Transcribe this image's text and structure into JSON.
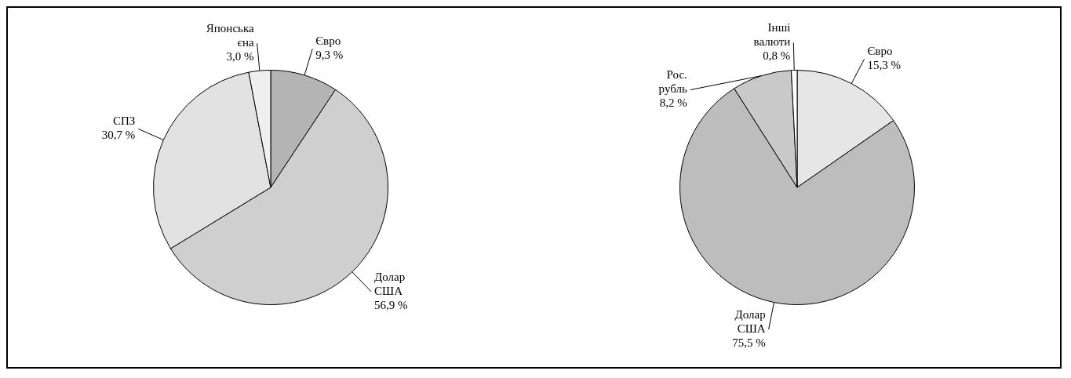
{
  "chart_data": [
    {
      "type": "pie",
      "categories": [
        "Євро",
        "Долар США",
        "СПЗ",
        "Японська єна"
      ],
      "values": [
        9.3,
        56.9,
        30.7,
        3.0
      ],
      "value_labels": [
        "9,3 %",
        "56,9 %",
        "30,7 %",
        "3,0 %"
      ],
      "colors": [
        "#b4b4b4",
        "#cfcfcf",
        "#e2e2e2",
        "#efefef"
      ],
      "legend": false
    },
    {
      "type": "pie",
      "categories": [
        "Євро",
        "Долар США",
        "Рос. рубль",
        "Інші валюти"
      ],
      "values": [
        15.3,
        75.5,
        8.2,
        0.8
      ],
      "value_labels": [
        "15,3 %",
        "75,5 %",
        "8,2 %",
        "0,8 %"
      ],
      "colors": [
        "#e6e6e6",
        "#bdbdbd",
        "#c9c9c9",
        "#ffffff"
      ],
      "legend": false
    }
  ]
}
